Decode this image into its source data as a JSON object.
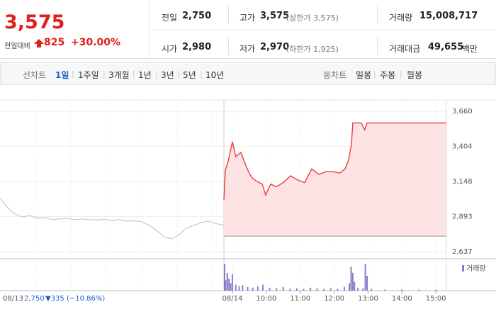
{
  "quote": {
    "price": "3,575",
    "change_label": "전일대비",
    "change": "825",
    "change_pct": "+30.00%"
  },
  "stats": [
    {
      "label": "전일",
      "value": "2,750"
    },
    {
      "label": "고가",
      "value": "3,575",
      "note": "(상한가 3,575)"
    },
    {
      "label": "거래량",
      "value": "15,008,717"
    },
    {
      "label": "시가",
      "value": "2,980"
    },
    {
      "label": "저가",
      "value": "2,970",
      "note": "(하한가 1,925)"
    },
    {
      "label": "거래대금",
      "value": "49,655",
      "unit": "백만"
    }
  ],
  "tabs": {
    "line_label": "선차트",
    "line": [
      "1일",
      "1주일",
      "3개월",
      "1년",
      "3년",
      "5년",
      "10년"
    ],
    "candle_label": "봉차트",
    "candle": [
      "일봉",
      "주봉",
      "월봉"
    ]
  },
  "chart_data": {
    "type": "line",
    "ylim": [
      2637,
      3660
    ],
    "yticks": [
      {
        "value": 2637,
        "label": "2,637"
      },
      {
        "value": 2893,
        "label": "2,893"
      },
      {
        "value": 3148,
        "label": "3,148"
      },
      {
        "value": 3404,
        "label": "3,404"
      },
      {
        "value": 3660,
        "label": "3,660"
      }
    ],
    "xlim": [
      8.75,
      15.31
    ],
    "xticks": [
      {
        "value": 9,
        "label": "08/14"
      },
      {
        "value": 10,
        "label": "10:00"
      },
      {
        "value": 11,
        "label": "11:00"
      },
      {
        "value": 12,
        "label": "12:00"
      },
      {
        "value": 13,
        "label": "13:00"
      },
      {
        "value": 14,
        "label": "14:00"
      },
      {
        "value": 15,
        "label": "15:00"
      }
    ],
    "baseline": 2750,
    "grid": true,
    "series": [
      {
        "color": "#c8c8c8",
        "values": [
          3025,
          2960,
          2910,
          2890,
          2900,
          2880,
          2885,
          2870,
          2875,
          2880,
          2870,
          2875,
          2870,
          2868,
          2872,
          2865,
          2870,
          2860,
          2862,
          2855,
          2830,
          2790,
          2745,
          2730,
          2760,
          2810,
          2830,
          2850,
          2860,
          2840,
          2830
        ]
      },
      {
        "color": "#f03c3c",
        "x": [
          8.75,
          8.79,
          8.88,
          9.0,
          9.1,
          9.25,
          9.42,
          9.56,
          9.71,
          9.88,
          9.98,
          10.13,
          10.29,
          10.5,
          10.71,
          10.92,
          11.13,
          11.34,
          11.55,
          11.76,
          11.97,
          12.17,
          12.32,
          12.42,
          12.51,
          12.55,
          12.8,
          12.9,
          12.97,
          13.85,
          14.68,
          15.31
        ],
        "values": [
          3015,
          3230,
          3300,
          3438,
          3330,
          3360,
          3250,
          3180,
          3150,
          3130,
          3050,
          3130,
          3110,
          3140,
          3190,
          3160,
          3140,
          3240,
          3200,
          3220,
          3220,
          3210,
          3240,
          3300,
          3420,
          3575,
          3575,
          3525,
          3575,
          3575,
          3575,
          3575
        ]
      }
    ],
    "volume": {
      "name": "거래량",
      "color": "#8b7cc8",
      "ylim": [
        0,
        100
      ],
      "x": [
        8.77,
        8.8,
        8.85,
        8.9,
        8.95,
        9.0,
        9.1,
        9.2,
        9.3,
        9.45,
        9.6,
        9.75,
        9.9,
        10.1,
        10.3,
        10.5,
        10.7,
        10.9,
        11.1,
        11.3,
        11.5,
        11.7,
        11.9,
        12.1,
        12.3,
        12.45,
        12.5,
        12.55,
        12.6,
        12.7,
        12.85,
        12.92,
        12.97,
        13.1,
        13.5,
        14,
        14.5,
        15
      ],
      "values": [
        90,
        35,
        60,
        40,
        25,
        55,
        20,
        15,
        18,
        12,
        10,
        14,
        20,
        10,
        8,
        12,
        6,
        8,
        6,
        10,
        7,
        6,
        8,
        6,
        12,
        25,
        80,
        60,
        30,
        10,
        8,
        90,
        50,
        6,
        4,
        4,
        3,
        3
      ]
    },
    "prev_day": {
      "label": "08/13",
      "close": "2,750",
      "change": "▼335 (−10.86%)"
    }
  }
}
